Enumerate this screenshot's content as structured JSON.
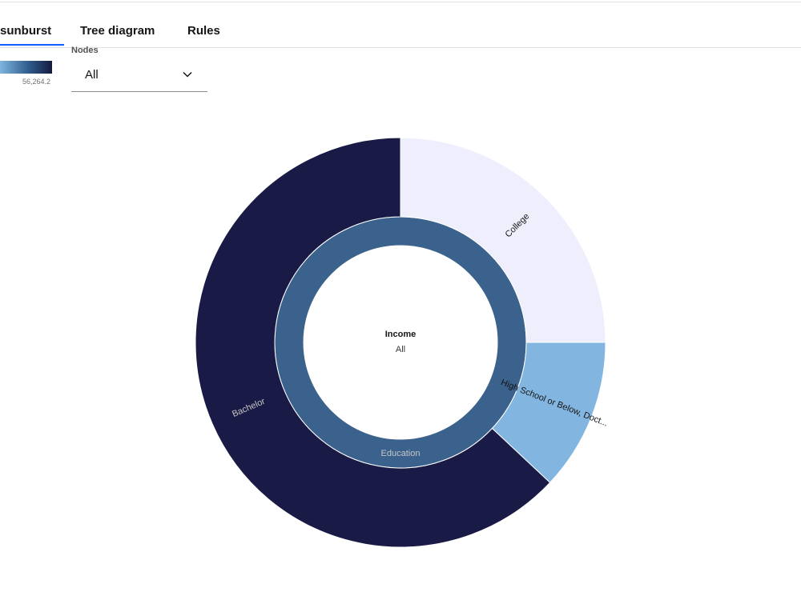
{
  "tabs": [
    {
      "label": "sunburst",
      "active": true
    },
    {
      "label": "Tree diagram",
      "active": false
    },
    {
      "label": "Rules",
      "active": false
    }
  ],
  "legend": {
    "max_label": "56,264.2",
    "colors": [
      "#7fb4e0",
      "#2f5c8c",
      "#141a40"
    ]
  },
  "nodes_filter": {
    "label": "Nodes",
    "value": "All"
  },
  "chart_data": {
    "type": "sunburst",
    "center": {
      "title": "Income",
      "subtitle": "All"
    },
    "inner_ring": [
      {
        "label": "Education",
        "share": 1.0,
        "color": "#3a628c"
      }
    ],
    "outer_ring": [
      {
        "label": "College",
        "share": 0.25,
        "color": "#efeefc"
      },
      {
        "label": "High School or Below, Doct...",
        "share": 0.12,
        "color": "#82b6e0"
      },
      {
        "label": "Bachelor",
        "share": 0.63,
        "color": "#1a1a46"
      }
    ]
  }
}
